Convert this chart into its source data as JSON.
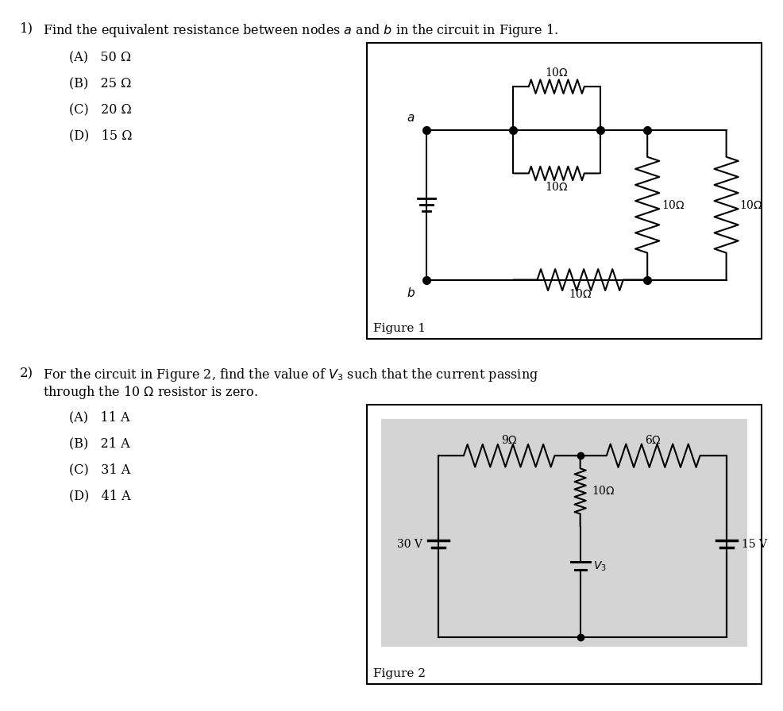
{
  "bg_color": "#ffffff",
  "page_width": 9.86,
  "page_height": 8.96,
  "q1": {
    "number": "1)",
    "question": "Find the equivalent resistance between nodes $a$ and $b$ in the circuit in Figure 1.",
    "options": [
      "(A)   50 Ω",
      "(B)   25 Ω",
      "(C)   20 Ω",
      "(D)   15 Ω"
    ],
    "figure_label": "Figure 1",
    "figure_bg": "#ffffff"
  },
  "q2": {
    "number": "2)",
    "question_line1": "For the circuit in Figure 2, find the value of $V_3$ such that the current passing",
    "question_line2": "through the 10 Ω resistor is zero.",
    "options": [
      "(A)   11 A",
      "(B)   21 A",
      "(C)   31 A",
      "(D)   41 A"
    ],
    "figure_label": "Figure 2",
    "figure_bg": "#d4d4d4"
  }
}
